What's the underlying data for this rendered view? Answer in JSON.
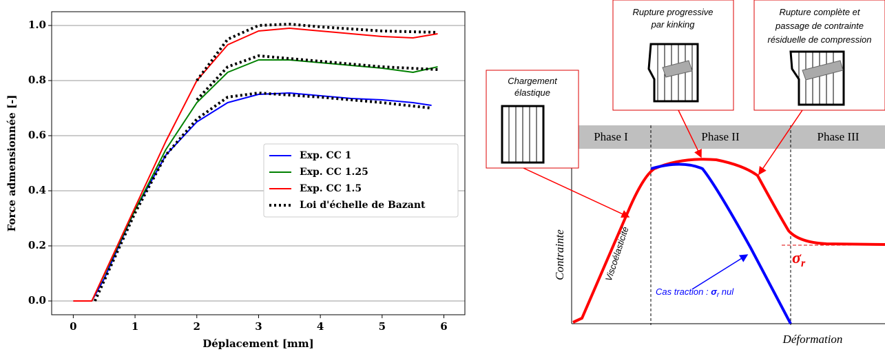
{
  "chart_data": [
    {
      "type": "line",
      "xlabel": "Déplacement [mm]",
      "ylabel": "Force admensionnée [-]",
      "xlim": [
        -0.35,
        6.34
      ],
      "ylim": [
        -0.05,
        1.05
      ],
      "xticks": [
        0,
        1,
        2,
        3,
        4,
        5,
        6
      ],
      "yticks": [
        {
          "value": 0,
          "label": "0.0"
        },
        0.2,
        0.4,
        0.6,
        0.8,
        {
          "value": 1,
          "label": "1.0"
        }
      ],
      "grid": true,
      "legend": "center right",
      "series": [
        {
          "name": "Exp. CC 1",
          "color": "#0000ff",
          "style": "solid",
          "x": [
            0,
            0.3,
            0.5,
            1,
            1.5,
            2,
            2.5,
            3,
            3.5,
            4,
            4.5,
            5,
            5.5,
            5.8
          ],
          "values": [
            0,
            0,
            0.08,
            0.33,
            0.53,
            0.65,
            0.72,
            0.75,
            0.755,
            0.745,
            0.735,
            0.73,
            0.72,
            0.71
          ]
        },
        {
          "name": "Exp. CC 1.25",
          "color": "#008000",
          "style": "solid",
          "x": [
            0.3,
            1,
            1.5,
            2,
            2.5,
            3,
            3.5,
            4,
            4.5,
            5,
            5.5,
            5.9
          ],
          "values": [
            0,
            0.33,
            0.55,
            0.72,
            0.83,
            0.875,
            0.875,
            0.865,
            0.855,
            0.845,
            0.83,
            0.85
          ]
        },
        {
          "name": "Exp. CC 1.5",
          "color": "#ff0000",
          "style": "solid",
          "x": [
            0,
            0.3,
            1,
            1.5,
            2,
            2.5,
            3,
            3.5,
            4,
            4.5,
            5,
            5.5,
            5.9
          ],
          "values": [
            0,
            0,
            0.34,
            0.58,
            0.8,
            0.93,
            0.98,
            0.99,
            0.98,
            0.97,
            0.96,
            0.955,
            0.97
          ]
        },
        {
          "name": "Loi d'échelle de Bazant",
          "color": "#000000",
          "style": "dotted",
          "x": [
            0.35,
            1,
            1.5,
            2,
            2.5,
            3,
            4,
            5,
            5.8,
            null,
            2,
            2.5,
            3,
            4,
            5,
            5.9,
            null,
            2,
            2.5,
            3,
            3.5,
            4,
            5,
            5.9
          ],
          "values": [
            0,
            0.32,
            0.53,
            0.66,
            0.74,
            0.755,
            0.74,
            0.72,
            0.7,
            null,
            0.73,
            0.85,
            0.89,
            0.87,
            0.85,
            0.84,
            null,
            0.8,
            0.95,
            1,
            1.005,
            0.995,
            0.98,
            0.975
          ]
        }
      ]
    }
  ],
  "diagram": {
    "phases": [
      "Phase I",
      "Phase II",
      "Phase III"
    ],
    "boxes": [
      [
        "Chargement",
        "élastique"
      ],
      [
        "Rupture progressive",
        "par kinking"
      ],
      [
        "Rupture complète et",
        "passage de  contrainte",
        "résiduelle de compression"
      ]
    ],
    "y_label": "Contrainte",
    "x_label": "Déformation",
    "curve_label": "Viscoélasticité",
    "sigma": "σ",
    "sigma_sub": "r",
    "traction": {
      "before": "Cas traction : ",
      "sigma": "σ",
      "sub": "r",
      "after": " nul"
    }
  }
}
